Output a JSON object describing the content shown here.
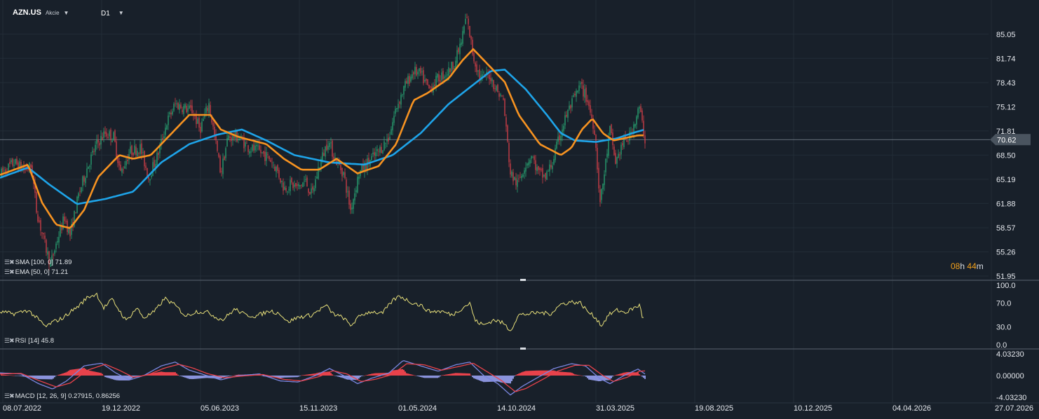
{
  "header": {
    "symbol": "AZN.US",
    "instrument_type": "Akcie",
    "timeframe": "D1"
  },
  "indicators": {
    "sma_label": "SMA [100, 0] 71.89",
    "ema_label": "EMA [50, 0] 71.21",
    "rsi_label": "RSI [14] 45.8",
    "macd_label": "MACD [12, 26, 9] 0.27915, 0.86256"
  },
  "timer": {
    "hours": "08",
    "h_unit": "h",
    "minutes": "44",
    "m_unit": "m"
  },
  "colors": {
    "background": "#18202a",
    "up_candle": "#2ab27b",
    "down_candle": "#e8424b",
    "sma": "#1ea4e9",
    "ema": "#f79321",
    "rsi": "#e8e07a",
    "macd_line": "#7a86e0",
    "signal_line": "#e8424b",
    "macd_hist_pos": "#e8424b",
    "macd_hist_neg": "#8a93dc"
  },
  "chart_data": [
    {
      "type": "candlestick",
      "panel": "price",
      "y_ticks": [
        "85.05",
        "81.74",
        "78.43",
        "75.12",
        "71.81",
        "68.50",
        "65.19",
        "61.88",
        "58.57",
        "55.26",
        "51.95"
      ],
      "ylim": [
        51.95,
        88.0
      ],
      "current_price": "70.62",
      "x_ticks": [
        "08.07.2022",
        "19.12.2022",
        "05.06.2023",
        "15.11.2023",
        "01.05.2024",
        "14.10.2024",
        "31.03.2025",
        "19.08.2025",
        "10.12.2025",
        "04.04.2026",
        "27.07.2026"
      ],
      "price_path": [
        [
          0,
          65.8
        ],
        [
          20,
          67.5
        ],
        [
          35,
          66.5
        ],
        [
          45,
          67
        ],
        [
          52,
          61
        ],
        [
          62,
          57
        ],
        [
          72,
          53.5
        ],
        [
          82,
          57
        ],
        [
          92,
          60
        ],
        [
          100,
          57.5
        ],
        [
          112,
          63
        ],
        [
          125,
          67
        ],
        [
          138,
          70
        ],
        [
          150,
          71.5
        ],
        [
          162,
          71
        ],
        [
          172,
          66
        ],
        [
          185,
          69
        ],
        [
          200,
          69.5
        ],
        [
          212,
          65.5
        ],
        [
          225,
          68.5
        ],
        [
          238,
          73
        ],
        [
          250,
          75.5
        ],
        [
          262,
          75
        ],
        [
          275,
          74.5
        ],
        [
          285,
          72
        ],
        [
          298,
          75.5
        ],
        [
          308,
          70
        ],
        [
          315,
          66
        ],
        [
          325,
          71
        ],
        [
          340,
          71
        ],
        [
          355,
          69.5
        ],
        [
          370,
          69
        ],
        [
          385,
          68
        ],
        [
          395,
          66.5
        ],
        [
          405,
          64
        ],
        [
          415,
          64.5
        ],
        [
          425,
          64
        ],
        [
          435,
          65
        ],
        [
          445,
          63
        ],
        [
          455,
          67
        ],
        [
          468,
          70.5
        ],
        [
          478,
          68
        ],
        [
          490,
          66
        ],
        [
          500,
          61
        ],
        [
          512,
          66
        ],
        [
          525,
          67.5
        ],
        [
          540,
          69
        ],
        [
          555,
          71
        ],
        [
          565,
          75
        ],
        [
          578,
          78
        ],
        [
          590,
          80
        ],
        [
          600,
          79.5
        ],
        [
          612,
          77.5
        ],
        [
          625,
          79
        ],
        [
          640,
          80
        ],
        [
          650,
          81.5
        ],
        [
          658,
          84
        ],
        [
          665,
          87.5
        ],
        [
          670,
          85
        ],
        [
          675,
          82
        ],
        [
          685,
          79
        ],
        [
          698,
          79.5
        ],
        [
          708,
          77.5
        ],
        [
          718,
          76
        ],
        [
          728,
          66
        ],
        [
          738,
          64.5
        ],
        [
          748,
          67
        ],
        [
          758,
          68.5
        ],
        [
          768,
          66
        ],
        [
          778,
          65.5
        ],
        [
          788,
          67.5
        ],
        [
          798,
          71
        ],
        [
          808,
          74
        ],
        [
          818,
          76
        ],
        [
          828,
          78
        ],
        [
          838,
          76
        ],
        [
          848,
          72
        ],
        [
          856,
          62
        ],
        [
          862,
          66
        ],
        [
          870,
          72
        ],
        [
          878,
          67.5
        ],
        [
          888,
          70
        ],
        [
          898,
          71
        ],
        [
          905,
          73
        ],
        [
          912,
          75
        ],
        [
          920,
          70.6
        ]
      ],
      "sma_path": [
        [
          0,
          65.4
        ],
        [
          40,
          66.8
        ],
        [
          70,
          64.5
        ],
        [
          110,
          61.8
        ],
        [
          150,
          62.5
        ],
        [
          190,
          63.5
        ],
        [
          230,
          67.5
        ],
        [
          270,
          70
        ],
        [
          310,
          71.3
        ],
        [
          345,
          72
        ],
        [
          380,
          70.5
        ],
        [
          420,
          68.5
        ],
        [
          470,
          67.5
        ],
        [
          520,
          67.2
        ],
        [
          560,
          68.5
        ],
        [
          600,
          71.5
        ],
        [
          640,
          75.5
        ],
        [
          680,
          78.5
        ],
        [
          700,
          80
        ],
        [
          720,
          80.2
        ],
        [
          750,
          77.5
        ],
        [
          780,
          74
        ],
        [
          800,
          71.5
        ],
        [
          820,
          70.5
        ],
        [
          850,
          70.3
        ],
        [
          880,
          70.8
        ],
        [
          905,
          71.6
        ],
        [
          920,
          72
        ]
      ],
      "ema_path": [
        [
          0,
          65.8
        ],
        [
          40,
          67.2
        ],
        [
          60,
          62
        ],
        [
          80,
          59
        ],
        [
          100,
          58.5
        ],
        [
          120,
          61
        ],
        [
          140,
          65.5
        ],
        [
          170,
          68.5
        ],
        [
          190,
          68
        ],
        [
          215,
          68.5
        ],
        [
          240,
          71
        ],
        [
          270,
          74
        ],
        [
          300,
          74
        ],
        [
          315,
          72
        ],
        [
          340,
          71
        ],
        [
          380,
          70
        ],
        [
          405,
          68
        ],
        [
          430,
          66.5
        ],
        [
          455,
          66.5
        ],
        [
          480,
          68
        ],
        [
          510,
          66
        ],
        [
          540,
          67
        ],
        [
          565,
          70
        ],
        [
          590,
          76
        ],
        [
          610,
          77
        ],
        [
          640,
          79
        ],
        [
          660,
          81.5
        ],
        [
          675,
          83
        ],
        [
          700,
          80.5
        ],
        [
          720,
          78.5
        ],
        [
          740,
          74
        ],
        [
          770,
          70
        ],
        [
          800,
          68.5
        ],
        [
          815,
          69.5
        ],
        [
          830,
          72
        ],
        [
          845,
          73.5
        ],
        [
          860,
          71.5
        ],
        [
          875,
          70.5
        ],
        [
          890,
          70.8
        ],
        [
          910,
          71.2
        ],
        [
          920,
          71.2
        ]
      ]
    },
    {
      "type": "line",
      "panel": "rsi",
      "name": "RSI [14]",
      "y_ticks": [
        "100.0",
        "70.0",
        "30.0",
        "0.0"
      ],
      "ylim": [
        0,
        100
      ],
      "path": [
        [
          0,
          55
        ],
        [
          20,
          52
        ],
        [
          40,
          58
        ],
        [
          55,
          42
        ],
        [
          65,
          30
        ],
        [
          75,
          38
        ],
        [
          90,
          45
        ],
        [
          100,
          55
        ],
        [
          112,
          65
        ],
        [
          125,
          80
        ],
        [
          138,
          85
        ],
        [
          148,
          62
        ],
        [
          160,
          76
        ],
        [
          170,
          58
        ],
        [
          180,
          40
        ],
        [
          195,
          62
        ],
        [
          205,
          45
        ],
        [
          220,
          55
        ],
        [
          235,
          78
        ],
        [
          250,
          66
        ],
        [
          265,
          48
        ],
        [
          280,
          56
        ],
        [
          298,
          54
        ],
        [
          308,
          46
        ],
        [
          318,
          42
        ],
        [
          335,
          60
        ],
        [
          350,
          50
        ],
        [
          365,
          48
        ],
        [
          385,
          57
        ],
        [
          400,
          52
        ],
        [
          410,
          38
        ],
        [
          425,
          46
        ],
        [
          445,
          50
        ],
        [
          465,
          66
        ],
        [
          475,
          52
        ],
        [
          490,
          45
        ],
        [
          500,
          32
        ],
        [
          515,
          50
        ],
        [
          530,
          56
        ],
        [
          545,
          52
        ],
        [
          560,
          74
        ],
        [
          570,
          82
        ],
        [
          585,
          72
        ],
        [
          600,
          66
        ],
        [
          612,
          56
        ],
        [
          630,
          56
        ],
        [
          645,
          50
        ],
        [
          660,
          62
        ],
        [
          670,
          70
        ],
        [
          678,
          40
        ],
        [
          690,
          33
        ],
        [
          705,
          42
        ],
        [
          718,
          36
        ],
        [
          728,
          24
        ],
        [
          740,
          50
        ],
        [
          755,
          52
        ],
        [
          770,
          54
        ],
        [
          785,
          52
        ],
        [
          800,
          68
        ],
        [
          815,
          72
        ],
        [
          828,
          70
        ],
        [
          838,
          56
        ],
        [
          850,
          45
        ],
        [
          858,
          32
        ],
        [
          868,
          50
        ],
        [
          880,
          58
        ],
        [
          892,
          54
        ],
        [
          905,
          62
        ],
        [
          912,
          66
        ],
        [
          918,
          45.8
        ]
      ]
    },
    {
      "type": "bar+line",
      "panel": "macd",
      "name": "MACD [12, 26, 9]",
      "y_ticks": [
        "4.03230",
        "0.00000",
        "-4.03230"
      ],
      "ylim": [
        -4.0323,
        4.0323
      ],
      "macd_path": [
        [
          0,
          0.5
        ],
        [
          30,
          0.3
        ],
        [
          55,
          -1.5
        ],
        [
          75,
          -2.5
        ],
        [
          95,
          -1
        ],
        [
          120,
          1.8
        ],
        [
          145,
          2.3
        ],
        [
          165,
          0.5
        ],
        [
          185,
          -0.8
        ],
        [
          205,
          0
        ],
        [
          230,
          1.8
        ],
        [
          250,
          2.5
        ],
        [
          270,
          1
        ],
        [
          290,
          0.2
        ],
        [
          315,
          -0.8
        ],
        [
          340,
          0
        ],
        [
          370,
          0.3
        ],
        [
          400,
          -1
        ],
        [
          425,
          -1.2
        ],
        [
          450,
          0
        ],
        [
          470,
          1.3
        ],
        [
          490,
          0
        ],
        [
          510,
          -1.5
        ],
        [
          530,
          -0.5
        ],
        [
          555,
          0.5
        ],
        [
          575,
          2.8
        ],
        [
          600,
          1.8
        ],
        [
          625,
          0.8
        ],
        [
          650,
          2
        ],
        [
          670,
          2.5
        ],
        [
          690,
          0
        ],
        [
          710,
          -1.5
        ],
        [
          728,
          -3.6
        ],
        [
          745,
          -2
        ],
        [
          765,
          -0.5
        ],
        [
          790,
          1.3
        ],
        [
          815,
          2.2
        ],
        [
          835,
          1.8
        ],
        [
          855,
          -0.5
        ],
        [
          870,
          -1.5
        ],
        [
          890,
          0
        ],
        [
          910,
          1.2
        ],
        [
          920,
          0.28
        ]
      ],
      "signal_path": [
        [
          0,
          0.3
        ],
        [
          30,
          0.4
        ],
        [
          55,
          -0.9
        ],
        [
          80,
          -2.1
        ],
        [
          100,
          -1.4
        ],
        [
          125,
          1
        ],
        [
          150,
          2.1
        ],
        [
          170,
          1
        ],
        [
          190,
          -0.3
        ],
        [
          210,
          0.1
        ],
        [
          235,
          1.4
        ],
        [
          255,
          2.1
        ],
        [
          275,
          1.4
        ],
        [
          295,
          0.4
        ],
        [
          320,
          -0.4
        ],
        [
          345,
          -0.1
        ],
        [
          375,
          0.2
        ],
        [
          405,
          -0.7
        ],
        [
          430,
          -1
        ],
        [
          455,
          -0.2
        ],
        [
          475,
          0.9
        ],
        [
          495,
          0.3
        ],
        [
          515,
          -1.1
        ],
        [
          535,
          -0.7
        ],
        [
          560,
          0.2
        ],
        [
          580,
          2.2
        ],
        [
          605,
          2
        ],
        [
          630,
          1
        ],
        [
          655,
          1.7
        ],
        [
          675,
          2.3
        ],
        [
          695,
          0.7
        ],
        [
          715,
          -0.9
        ],
        [
          735,
          -3
        ],
        [
          750,
          -2.4
        ],
        [
          770,
          -1
        ],
        [
          795,
          0.8
        ],
        [
          820,
          1.9
        ],
        [
          840,
          1.9
        ],
        [
          860,
          0
        ],
        [
          875,
          -1.1
        ],
        [
          895,
          -0.3
        ],
        [
          912,
          0.8
        ],
        [
          920,
          0.86
        ]
      ]
    }
  ]
}
